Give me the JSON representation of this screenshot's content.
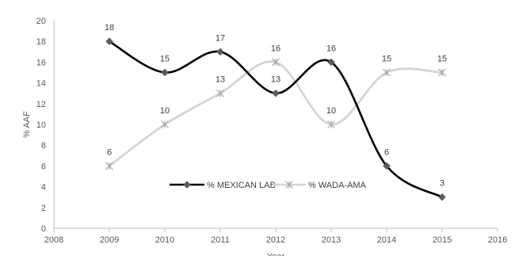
{
  "chart_data": {
    "type": "line",
    "smooth": true,
    "title": "",
    "xlabel": "Year",
    "ylabel": "% AAF",
    "xlim": [
      2008,
      2016
    ],
    "ylim": [
      0,
      20
    ],
    "xticks": [
      2008,
      2009,
      2010,
      2011,
      2012,
      2013,
      2014,
      2015,
      2016
    ],
    "yticks": [
      0,
      2,
      4,
      6,
      8,
      10,
      12,
      14,
      16,
      18,
      20
    ],
    "x": [
      2009,
      2010,
      2011,
      2012,
      2013,
      2014,
      2015
    ],
    "grid": false,
    "legend_position": "bottom-center (inside plot)",
    "series": [
      {
        "name": "% MEXICAN LAB",
        "values": [
          18,
          15,
          17,
          13,
          16,
          6,
          3
        ],
        "color": "#000000",
        "marker": "diamond",
        "marker_color": "#5a5a5a"
      },
      {
        "name": "% WADA-AMA",
        "values": [
          6,
          10,
          13,
          16,
          10,
          15,
          15
        ],
        "color": "#d4d4d4",
        "marker": "star",
        "marker_color": "#a6a6a6"
      }
    ]
  }
}
